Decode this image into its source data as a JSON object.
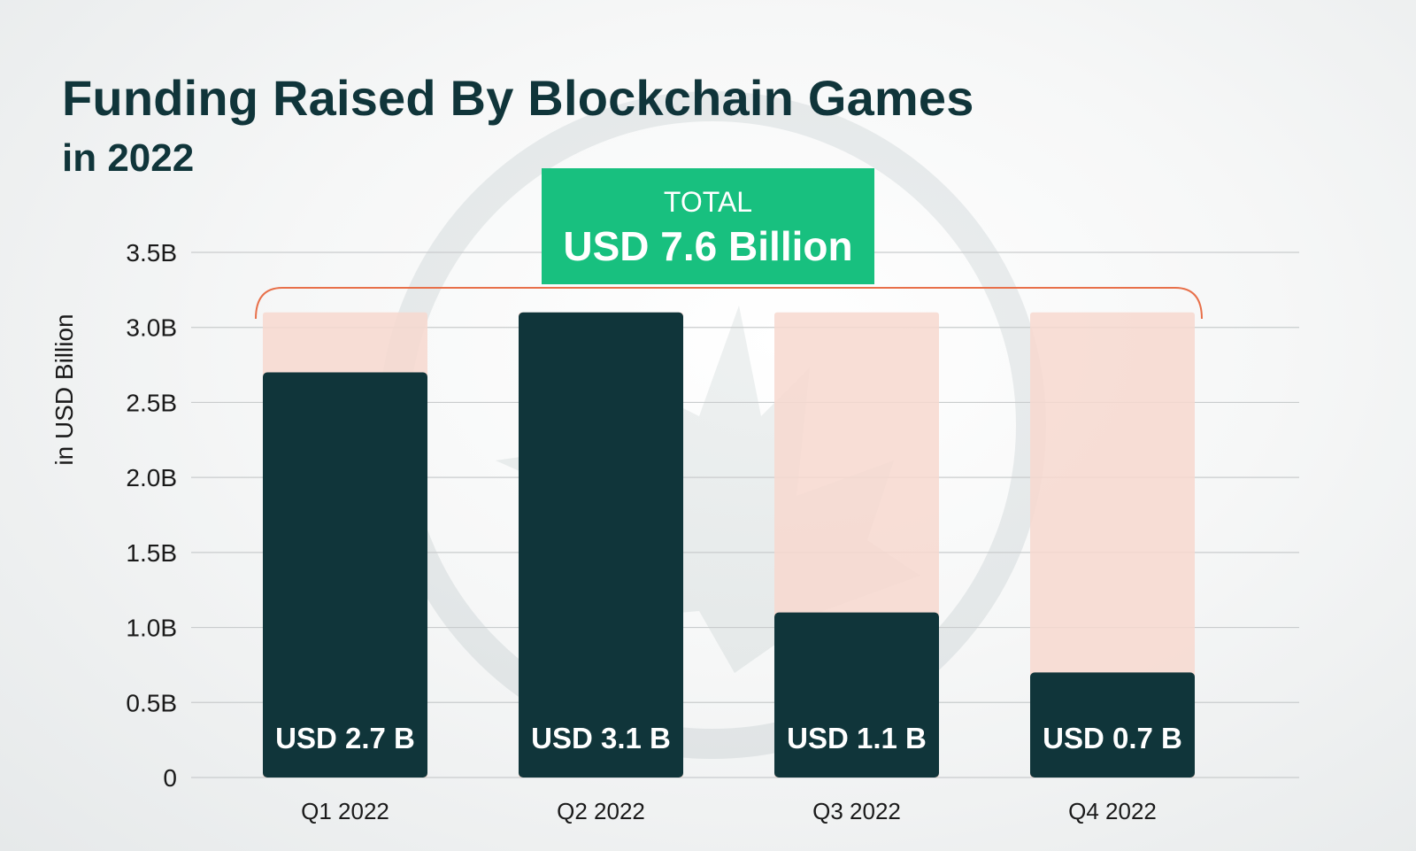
{
  "chart_data": {
    "type": "bar",
    "title": "Funding Raised By Blockchain Games",
    "subtitle": "in 2022",
    "ylabel": "in USD Billion",
    "xlabel": "",
    "categories": [
      "Q1 2022",
      "Q2 2022",
      "Q3 2022",
      "Q4 2022"
    ],
    "values": [
      2.7,
      3.1,
      1.1,
      0.7
    ],
    "background_max": 3.1,
    "data_labels": [
      "USD 2.7 B",
      "USD 3.1 B",
      "USD 1.1 B",
      "USD 0.7 B"
    ],
    "ylim": [
      0,
      3.5
    ],
    "yticks": [
      0,
      0.5,
      1.0,
      1.5,
      2.0,
      2.5,
      3.0,
      3.5
    ],
    "ytick_labels": [
      "0",
      "0.5B",
      "1.0B",
      "1.5B",
      "2.0B",
      "2.5B",
      "3.0B",
      "3.5B"
    ],
    "grid": true,
    "annotation": {
      "label": "TOTAL",
      "value": "USD 7.6 Billion"
    },
    "colors": {
      "bar": "#10353a",
      "bar_background": "#f7d8cf",
      "bracket": "#e8704a",
      "total_box": "#18c07f",
      "grid": "#c9cccd",
      "title": "#10353a"
    }
  }
}
